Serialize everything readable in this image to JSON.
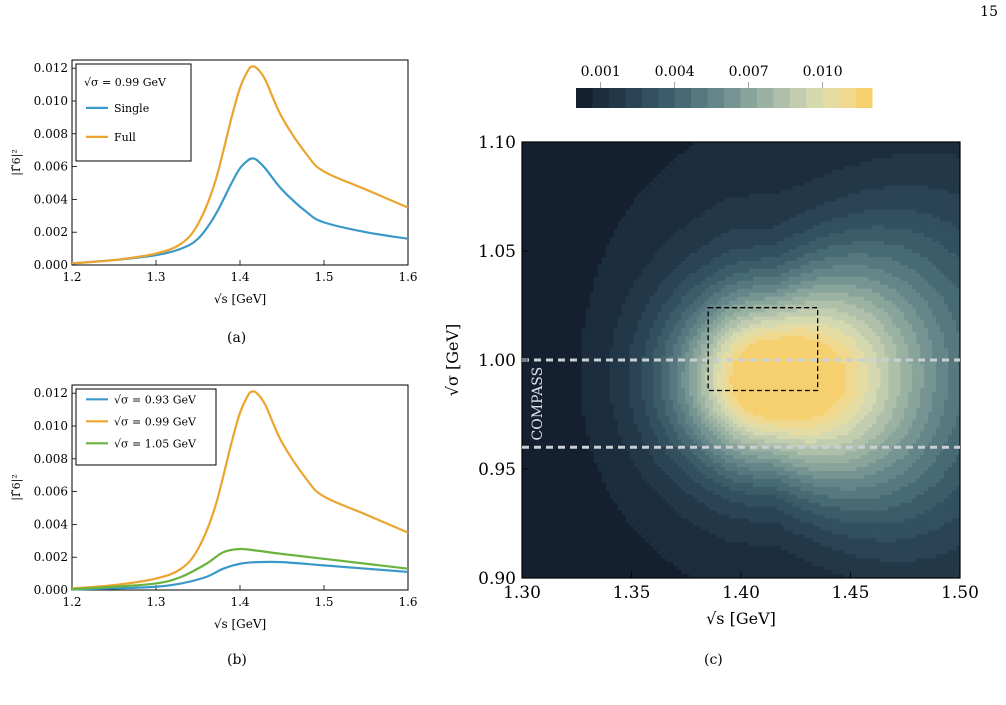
{
  "page": {
    "number": "15"
  },
  "captions": {
    "a": "(a)",
    "b": "(b)",
    "c": "(c)"
  },
  "colors": {
    "single": "#3a99c9",
    "full": "#eba52e",
    "green": "#6ab33e",
    "dashed_line": "#c9cfd2"
  },
  "chart_data": [
    {
      "id": "a",
      "type": "line",
      "xlabel": "√s [GeV]",
      "ylabel": "|Γ̃6|²",
      "xlim": [
        1.2,
        1.6
      ],
      "ylim": [
        0,
        0.0125
      ],
      "xticks": [
        "1.2",
        "1.3",
        "1.4",
        "1.5",
        "1.6"
      ],
      "yticks": [
        "0.000",
        "0.002",
        "0.004",
        "0.006",
        "0.008",
        "0.010",
        "0.012"
      ],
      "legend": {
        "placement": "top-left",
        "header": "√σ = 0.99 GeV",
        "entries": [
          "Single",
          "Full"
        ]
      },
      "series": [
        {
          "name": "Single",
          "color": "#3a99c9",
          "x": [
            1.2,
            1.25,
            1.3,
            1.33,
            1.35,
            1.37,
            1.39,
            1.4,
            1.41,
            1.415,
            1.42,
            1.43,
            1.45,
            1.48,
            1.5,
            1.55,
            1.6
          ],
          "y": [
            0.0001,
            0.0003,
            0.0006,
            0.001,
            0.0016,
            0.003,
            0.005,
            0.0059,
            0.0064,
            0.0065,
            0.0064,
            0.0059,
            0.0046,
            0.0032,
            0.0026,
            0.002,
            0.0016
          ]
        },
        {
          "name": "Full",
          "color": "#eba52e",
          "x": [
            1.2,
            1.25,
            1.3,
            1.33,
            1.35,
            1.37,
            1.39,
            1.4,
            1.41,
            1.415,
            1.42,
            1.43,
            1.45,
            1.48,
            1.5,
            1.55,
            1.6
          ],
          "y": [
            0.0001,
            0.0003,
            0.0007,
            0.0013,
            0.0025,
            0.005,
            0.009,
            0.0108,
            0.0119,
            0.0121,
            0.012,
            0.0113,
            0.009,
            0.0067,
            0.0057,
            0.0046,
            0.0035
          ]
        }
      ]
    },
    {
      "id": "b",
      "type": "line",
      "xlabel": "√s [GeV]",
      "ylabel": "|Γ̃6|²",
      "xlim": [
        1.2,
        1.6
      ],
      "ylim": [
        0,
        0.0125
      ],
      "xticks": [
        "1.2",
        "1.3",
        "1.4",
        "1.5",
        "1.6"
      ],
      "yticks": [
        "0.000",
        "0.002",
        "0.004",
        "0.006",
        "0.008",
        "0.010",
        "0.012"
      ],
      "legend": {
        "placement": "top-left",
        "entries": [
          "√σ = 0.93 GeV",
          "√σ = 0.99 GeV",
          "√σ = 1.05 GeV"
        ]
      },
      "series": [
        {
          "name": "√σ = 0.93 GeV",
          "color": "#3a99c9",
          "x": [
            1.2,
            1.25,
            1.3,
            1.33,
            1.36,
            1.38,
            1.4,
            1.42,
            1.45,
            1.5,
            1.55,
            1.6
          ],
          "y": [
            3e-05,
            0.0001,
            0.0002,
            0.0004,
            0.0008,
            0.0013,
            0.0016,
            0.0017,
            0.0017,
            0.0015,
            0.0013,
            0.0011
          ]
        },
        {
          "name": "√σ = 0.99 GeV",
          "color": "#eba52e",
          "x": [
            1.2,
            1.25,
            1.3,
            1.33,
            1.35,
            1.37,
            1.39,
            1.4,
            1.41,
            1.415,
            1.42,
            1.43,
            1.45,
            1.48,
            1.5,
            1.55,
            1.6
          ],
          "y": [
            0.0001,
            0.0003,
            0.0007,
            0.0013,
            0.0025,
            0.005,
            0.009,
            0.0108,
            0.0119,
            0.0121,
            0.012,
            0.0113,
            0.009,
            0.0067,
            0.0057,
            0.0046,
            0.0035
          ]
        },
        {
          "name": "√σ = 1.05 GeV",
          "color": "#6ab33e",
          "x": [
            1.2,
            1.25,
            1.3,
            1.33,
            1.36,
            1.38,
            1.4,
            1.42,
            1.45,
            1.5,
            1.55,
            1.6
          ],
          "y": [
            5e-05,
            0.0002,
            0.0004,
            0.0008,
            0.0016,
            0.0023,
            0.0025,
            0.0024,
            0.0022,
            0.0019,
            0.0016,
            0.0013
          ]
        }
      ]
    },
    {
      "id": "c",
      "type": "heatmap",
      "xlabel": "√s [GeV]",
      "ylabel": "√σ [GeV]",
      "xlim": [
        1.3,
        1.5
      ],
      "ylim": [
        0.9,
        1.1
      ],
      "xticks": [
        "1.30",
        "1.35",
        "1.40",
        "1.45",
        "1.50"
      ],
      "yticks": [
        "0.90",
        "0.95",
        "1.00",
        "1.05",
        "1.10"
      ],
      "colorbar": {
        "placement": "top",
        "ticks": [
          "0.001",
          "0.004",
          "0.007",
          "0.010"
        ],
        "range": [
          0,
          0.012
        ]
      },
      "peak": {
        "x": 1.415,
        "y": 0.991,
        "value": 0.012
      },
      "dashed_lines_y": [
        1.0,
        0.96
      ],
      "box": {
        "x": [
          1.385,
          1.435
        ],
        "y": [
          0.986,
          1.024
        ]
      },
      "annotation": "COMPASS"
    }
  ]
}
